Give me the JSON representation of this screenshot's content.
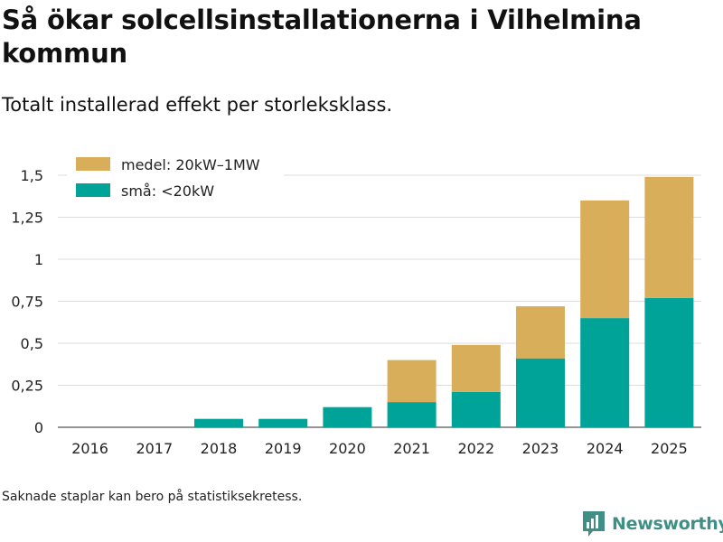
{
  "header": {
    "title": "Så ökar solcellsinstallationerna i Vilhelmina kommun",
    "subtitle": "Totalt installerad effekt per storleksklass."
  },
  "footer": {
    "note": "Saknade staplar kan bero på statistiksekretess.",
    "brand": "Newsworthy"
  },
  "colors": {
    "small": "#00a398",
    "medium": "#d9ae5a",
    "grid": "#dddddd",
    "axis": "#555555",
    "brand": "#3f8f86"
  },
  "chart_data": {
    "type": "bar",
    "stacked": true,
    "title": "Så ökar solcellsinstallationerna i Vilhelmina kommun",
    "subtitle": "Totalt installerad effekt per storleksklass.",
    "xlabel": "",
    "ylabel": "",
    "ylim": [
      0,
      1.5
    ],
    "yticks": [
      0,
      0.25,
      0.5,
      0.75,
      1,
      1.25,
      1.5
    ],
    "ytick_labels": [
      "0",
      "0,25",
      "0,5",
      "0,75",
      "1",
      "1,25",
      "1,5"
    ],
    "categories": [
      "2016",
      "2017",
      "2018",
      "2019",
      "2020",
      "2021",
      "2022",
      "2023",
      "2024",
      "2025"
    ],
    "series": [
      {
        "name": "små: <20kW",
        "color": "#00a398",
        "values": [
          0,
          0,
          0.05,
          0.05,
          0.12,
          0.15,
          0.21,
          0.41,
          0.65,
          0.77
        ]
      },
      {
        "name": "medel: 20kW–1MW",
        "color": "#d9ae5a",
        "values": [
          0,
          0,
          0,
          0,
          0,
          0.25,
          0.28,
          0.31,
          0.7,
          0.72
        ]
      }
    ],
    "legend": {
      "position": "top-left",
      "entries": [
        "medel: 20kW–1MW",
        "små: <20kW"
      ]
    }
  }
}
